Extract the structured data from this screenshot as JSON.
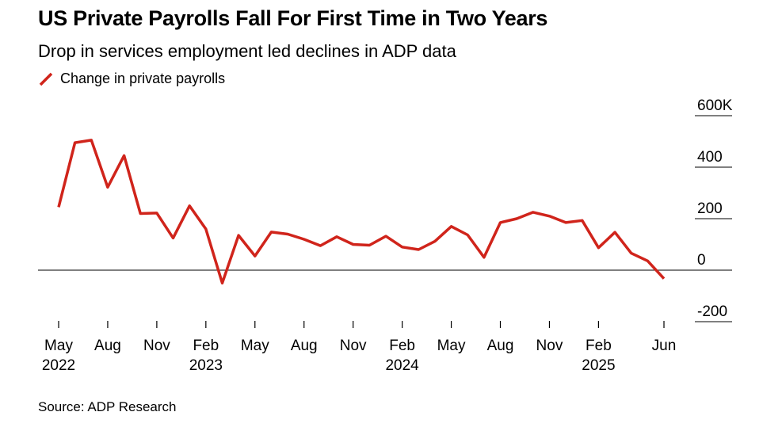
{
  "title": "US Private Payrolls Fall For First Time in Two Years",
  "subtitle": "Drop in services employment led declines in ADP data",
  "source": "Source: ADP Research",
  "colors": {
    "line": "#d0241b",
    "axis": "#000000",
    "text": "#000000"
  },
  "chart_data": {
    "type": "line",
    "series": [
      {
        "name": "Change in private payrolls",
        "x": [
          "2022-05",
          "2022-06",
          "2022-07",
          "2022-08",
          "2022-09",
          "2022-10",
          "2022-11",
          "2022-12",
          "2023-01",
          "2023-02",
          "2023-03",
          "2023-04",
          "2023-05",
          "2023-06",
          "2023-07",
          "2023-08",
          "2023-09",
          "2023-10",
          "2023-11",
          "2023-12",
          "2024-01",
          "2024-02",
          "2024-03",
          "2024-04",
          "2024-05",
          "2024-06",
          "2024-07",
          "2024-08",
          "2024-09",
          "2024-10",
          "2024-11",
          "2024-12",
          "2025-01",
          "2025-02",
          "2025-03",
          "2025-04",
          "2025-05",
          "2025-06"
        ],
        "values": [
          245,
          495,
          505,
          322,
          445,
          220,
          222,
          125,
          250,
          160,
          -50,
          135,
          55,
          148,
          140,
          120,
          95,
          130,
          100,
          97,
          132,
          90,
          80,
          112,
          170,
          137,
          50,
          185,
          200,
          225,
          210,
          185,
          193,
          87,
          147,
          66,
          36,
          -33
        ]
      }
    ],
    "x_ticks": [
      {
        "x": "2022-05",
        "label": "May",
        "year": "2022"
      },
      {
        "x": "2022-08",
        "label": "Aug",
        "year": ""
      },
      {
        "x": "2022-11",
        "label": "Nov",
        "year": ""
      },
      {
        "x": "2023-02",
        "label": "Feb",
        "year": "2023"
      },
      {
        "x": "2023-05",
        "label": "May",
        "year": ""
      },
      {
        "x": "2023-08",
        "label": "Aug",
        "year": ""
      },
      {
        "x": "2023-11",
        "label": "Nov",
        "year": ""
      },
      {
        "x": "2024-02",
        "label": "Feb",
        "year": "2024"
      },
      {
        "x": "2024-05",
        "label": "May",
        "year": ""
      },
      {
        "x": "2024-08",
        "label": "Aug",
        "year": ""
      },
      {
        "x": "2024-11",
        "label": "Nov",
        "year": ""
      },
      {
        "x": "2025-02",
        "label": "Feb",
        "year": "2025"
      },
      {
        "x": "2025-06",
        "label": "Jun",
        "year": ""
      }
    ],
    "y_ticks": [
      {
        "value": 600,
        "label": "600K"
      },
      {
        "value": 400,
        "label": "400"
      },
      {
        "value": 200,
        "label": "200"
      },
      {
        "value": 0,
        "label": "0"
      },
      {
        "value": -200,
        "label": "-200"
      }
    ],
    "ylim": [
      -200,
      600
    ],
    "legend_position": "top-left",
    "y_axis_side": "right",
    "zero_line": true,
    "grid": false
  }
}
